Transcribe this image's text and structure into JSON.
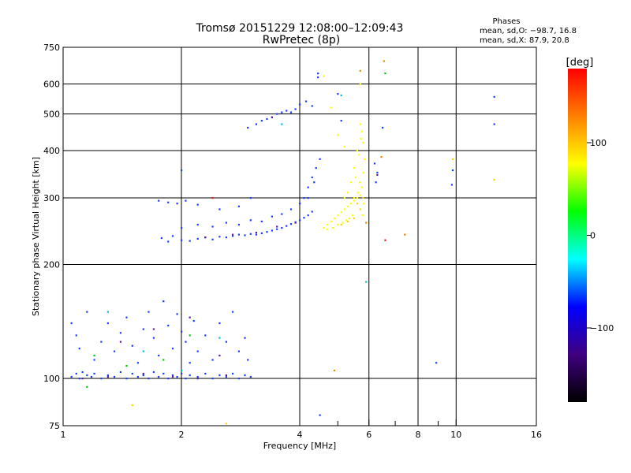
{
  "chart_data": {
    "type": "scatter",
    "title": "Tromsø 20151229 12:08:00–12:09:43",
    "subtitle": "RwPretec (8p)",
    "stats": {
      "heading": "Phases",
      "line_o": "mean, sd,O: −98.7, 16.8",
      "line_x": "mean, sd,X:  87.9, 20.8"
    },
    "xlabel": "Frequency [MHz]",
    "ylabel": "Stationary phase Virtual Height [km]",
    "x_scale": "log",
    "y_scale": "log",
    "xlim": [
      1,
      16
    ],
    "ylim": [
      75,
      750
    ],
    "x_ticks": [
      1,
      2,
      4,
      6,
      8,
      10,
      16
    ],
    "x_tick_labels": [
      "1",
      "2",
      "4",
      "6",
      "8",
      "10",
      "16"
    ],
    "x_grid": [
      2,
      4,
      6,
      8,
      10
    ],
    "x_minor": [
      5,
      7,
      9
    ],
    "y_ticks": [
      75,
      100,
      200,
      300,
      400,
      500,
      600,
      750
    ],
    "y_tick_labels": [
      "75",
      "100",
      "200",
      "300",
      "400",
      "500",
      "600",
      "750"
    ],
    "y_grid": [
      100,
      200,
      300,
      400,
      500,
      600
    ],
    "grid": true,
    "colorbar": {
      "label": "[deg]",
      "range": [
        -180,
        180
      ],
      "ticks": [
        100,
        0,
        -100
      ],
      "tick_labels": [
        "100",
        "0",
        "−100"
      ],
      "colors": [
        "#ff0000",
        "#ff8000",
        "#ffff00",
        "#00ff00",
        "#00ffff",
        "#0000ff",
        "#400080",
        "#000000"
      ]
    },
    "series": [
      {
        "color": "#1a3cff",
        "points": [
          [
            1.05,
            101
          ],
          [
            1.08,
            103
          ],
          [
            1.1,
            100
          ],
          [
            1.12,
            104
          ],
          [
            1.15,
            102
          ],
          [
            1.18,
            101
          ],
          [
            1.2,
            103
          ],
          [
            1.25,
            100
          ],
          [
            1.3,
            102
          ],
          [
            1.35,
            101
          ],
          [
            1.4,
            104
          ],
          [
            1.45,
            100
          ],
          [
            1.5,
            103
          ],
          [
            1.55,
            101
          ],
          [
            1.6,
            102
          ],
          [
            1.65,
            100
          ],
          [
            1.7,
            104
          ],
          [
            1.75,
            101
          ],
          [
            1.8,
            103
          ],
          [
            1.85,
            100
          ],
          [
            1.9,
            102
          ],
          [
            1.95,
            101
          ],
          [
            2.0,
            103
          ],
          [
            2.05,
            100
          ],
          [
            2.1,
            102
          ],
          [
            2.2,
            101
          ],
          [
            2.3,
            103
          ],
          [
            2.4,
            100
          ],
          [
            2.5,
            102
          ],
          [
            2.6,
            101
          ],
          [
            2.7,
            103
          ],
          [
            2.8,
            100
          ],
          [
            2.9,
            102
          ],
          [
            3.0,
            101
          ],
          [
            1.05,
            140
          ],
          [
            1.08,
            130
          ],
          [
            1.1,
            120
          ],
          [
            1.15,
            150
          ],
          [
            1.2,
            112
          ],
          [
            1.25,
            125
          ],
          [
            1.3,
            140
          ],
          [
            1.35,
            118
          ],
          [
            1.4,
            132
          ],
          [
            1.45,
            145
          ],
          [
            1.5,
            122
          ],
          [
            1.55,
            110
          ],
          [
            1.6,
            135
          ],
          [
            1.65,
            150
          ],
          [
            1.7,
            128
          ],
          [
            1.75,
            115
          ],
          [
            1.8,
            160
          ],
          [
            1.85,
            138
          ],
          [
            1.9,
            120
          ],
          [
            1.95,
            148
          ],
          [
            2.0,
            133
          ],
          [
            2.05,
            125
          ],
          [
            2.1,
            110
          ],
          [
            2.15,
            142
          ],
          [
            2.2,
            118
          ],
          [
            2.3,
            130
          ],
          [
            2.4,
            112
          ],
          [
            2.5,
            140
          ],
          [
            2.6,
            125
          ],
          [
            2.7,
            150
          ],
          [
            2.8,
            118
          ],
          [
            2.9,
            128
          ],
          [
            2.95,
            112
          ],
          [
            1.78,
            235
          ],
          [
            1.85,
            230
          ],
          [
            1.9,
            238
          ],
          [
            2.0,
            232
          ],
          [
            2.1,
            231
          ],
          [
            2.2,
            234
          ],
          [
            2.3,
            236
          ],
          [
            2.4,
            233
          ],
          [
            2.5,
            237
          ],
          [
            2.6,
            236
          ],
          [
            2.7,
            238
          ],
          [
            2.8,
            240
          ],
          [
            2.9,
            239
          ],
          [
            3.0,
            241
          ],
          [
            3.1,
            240
          ],
          [
            3.2,
            242
          ],
          [
            3.3,
            244
          ],
          [
            3.4,
            246
          ],
          [
            3.5,
            248
          ],
          [
            3.6,
            250
          ],
          [
            3.7,
            253
          ],
          [
            3.8,
            256
          ],
          [
            3.9,
            259
          ],
          [
            4.0,
            262
          ],
          [
            4.1,
            266
          ],
          [
            4.2,
            270
          ],
          [
            4.3,
            276
          ],
          [
            2.0,
            250
          ],
          [
            2.2,
            255
          ],
          [
            2.4,
            252
          ],
          [
            2.6,
            258
          ],
          [
            2.8,
            255
          ],
          [
            3.0,
            262
          ],
          [
            3.2,
            260
          ],
          [
            3.4,
            268
          ],
          [
            3.6,
            272
          ],
          [
            3.8,
            280
          ],
          [
            4.0,
            290
          ],
          [
            4.1,
            300
          ],
          [
            4.2,
            320
          ],
          [
            4.3,
            340
          ],
          [
            4.4,
            360
          ],
          [
            4.5,
            380
          ],
          [
            4.2,
            300
          ],
          [
            4.35,
            330
          ],
          [
            1.75,
            295
          ],
          [
            1.85,
            292
          ],
          [
            1.95,
            290
          ],
          [
            2.05,
            295
          ],
          [
            2.2,
            288
          ],
          [
            2.5,
            280
          ],
          [
            2.8,
            285
          ],
          [
            3.0,
            300
          ],
          [
            2.95,
            460
          ],
          [
            3.1,
            470
          ],
          [
            3.2,
            480
          ],
          [
            3.3,
            485
          ],
          [
            3.4,
            490
          ],
          [
            3.5,
            500
          ],
          [
            3.6,
            505
          ],
          [
            3.7,
            510
          ],
          [
            3.8,
            505
          ],
          [
            3.9,
            515
          ],
          [
            4.0,
            530
          ],
          [
            4.15,
            540
          ],
          [
            4.3,
            525
          ],
          [
            4.45,
            640
          ],
          [
            4.45,
            625
          ],
          [
            4.5,
            80
          ],
          [
            5.0,
            565
          ],
          [
            5.1,
            480
          ],
          [
            6.5,
            460
          ],
          [
            6.2,
            370
          ],
          [
            6.3,
            350
          ],
          [
            6.25,
            330
          ],
          [
            8.9,
            110
          ],
          [
            9.8,
            355
          ],
          [
            9.75,
            325
          ],
          [
            12.5,
            555
          ],
          [
            12.5,
            470
          ],
          [
            2.0,
            355
          ]
        ]
      },
      {
        "color": "#5a1aa8",
        "points": [
          [
            1.12,
            100
          ],
          [
            1.3,
            101
          ],
          [
            1.6,
            103
          ],
          [
            1.9,
            101
          ],
          [
            2.2,
            100
          ],
          [
            2.6,
            102
          ],
          [
            1.4,
            125
          ],
          [
            1.7,
            135
          ],
          [
            2.1,
            145
          ],
          [
            2.5,
            115
          ],
          [
            2.3,
            236
          ],
          [
            2.7,
            240
          ],
          [
            3.1,
            243
          ],
          [
            3.5,
            252
          ],
          [
            3.9,
            258
          ],
          [
            3.4,
            490
          ],
          [
            6.3,
            345
          ]
        ]
      },
      {
        "color": "#ffff00",
        "points": [
          [
            4.6,
            250
          ],
          [
            4.7,
            255
          ],
          [
            4.8,
            260
          ],
          [
            4.9,
            265
          ],
          [
            5.0,
            270
          ],
          [
            5.1,
            275
          ],
          [
            5.2,
            280
          ],
          [
            5.3,
            285
          ],
          [
            5.4,
            290
          ],
          [
            5.5,
            295
          ],
          [
            5.6,
            300
          ],
          [
            5.7,
            305
          ],
          [
            5.75,
            320
          ],
          [
            5.8,
            350
          ],
          [
            5.85,
            380
          ],
          [
            5.8,
            420
          ],
          [
            5.75,
            450
          ],
          [
            5.7,
            470
          ],
          [
            5.6,
            400
          ],
          [
            5.5,
            360
          ],
          [
            5.4,
            330
          ],
          [
            5.3,
            310
          ],
          [
            5.2,
            300
          ],
          [
            5.55,
            340
          ],
          [
            5.65,
            390
          ],
          [
            5.72,
            430
          ],
          [
            5.68,
            330
          ],
          [
            5.62,
            310
          ],
          [
            5.45,
            270
          ],
          [
            5.35,
            265
          ],
          [
            5.25,
            262
          ],
          [
            5.15,
            258
          ],
          [
            5.0,
            255
          ],
          [
            4.85,
            250
          ],
          [
            4.7,
            248
          ],
          [
            5.7,
            600
          ],
          [
            4.6,
            630
          ],
          [
            4.8,
            520
          ],
          [
            5.0,
            440
          ],
          [
            5.2,
            410
          ],
          [
            5.5,
            300
          ],
          [
            5.78,
            270
          ],
          [
            5.82,
            290
          ]
        ]
      },
      {
        "color": "#ffd500",
        "points": [
          [
            5.1,
            255
          ],
          [
            5.3,
            260
          ],
          [
            5.5,
            265
          ],
          [
            5.7,
            280
          ],
          [
            5.8,
            300
          ],
          [
            5.6,
            290
          ],
          [
            9.8,
            380
          ],
          [
            12.5,
            335
          ],
          [
            2.6,
            76
          ],
          [
            1.5,
            85
          ]
        ]
      },
      {
        "color": "#ff8000",
        "points": [
          [
            6.55,
            690
          ],
          [
            5.9,
            258
          ],
          [
            6.45,
            385
          ],
          [
            7.4,
            240
          ],
          [
            4.9,
            105
          ],
          [
            5.7,
            650
          ]
        ]
      },
      {
        "color": "#e02020",
        "points": [
          [
            6.6,
            232
          ],
          [
            2.4,
            300
          ]
        ]
      },
      {
        "color": "#00c800",
        "points": [
          [
            1.2,
            115
          ],
          [
            1.45,
            108
          ],
          [
            1.8,
            112
          ],
          [
            2.1,
            130
          ],
          [
            6.6,
            640
          ],
          [
            1.15,
            95
          ]
        ]
      },
      {
        "color": "#00c0e0",
        "points": [
          [
            1.3,
            150
          ],
          [
            1.6,
            118
          ],
          [
            2.0,
            105
          ],
          [
            2.5,
            128
          ],
          [
            5.1,
            560
          ],
          [
            5.9,
            180
          ],
          [
            3.6,
            470
          ]
        ]
      },
      {
        "color": "#ffffff",
        "points": []
      }
    ]
  }
}
